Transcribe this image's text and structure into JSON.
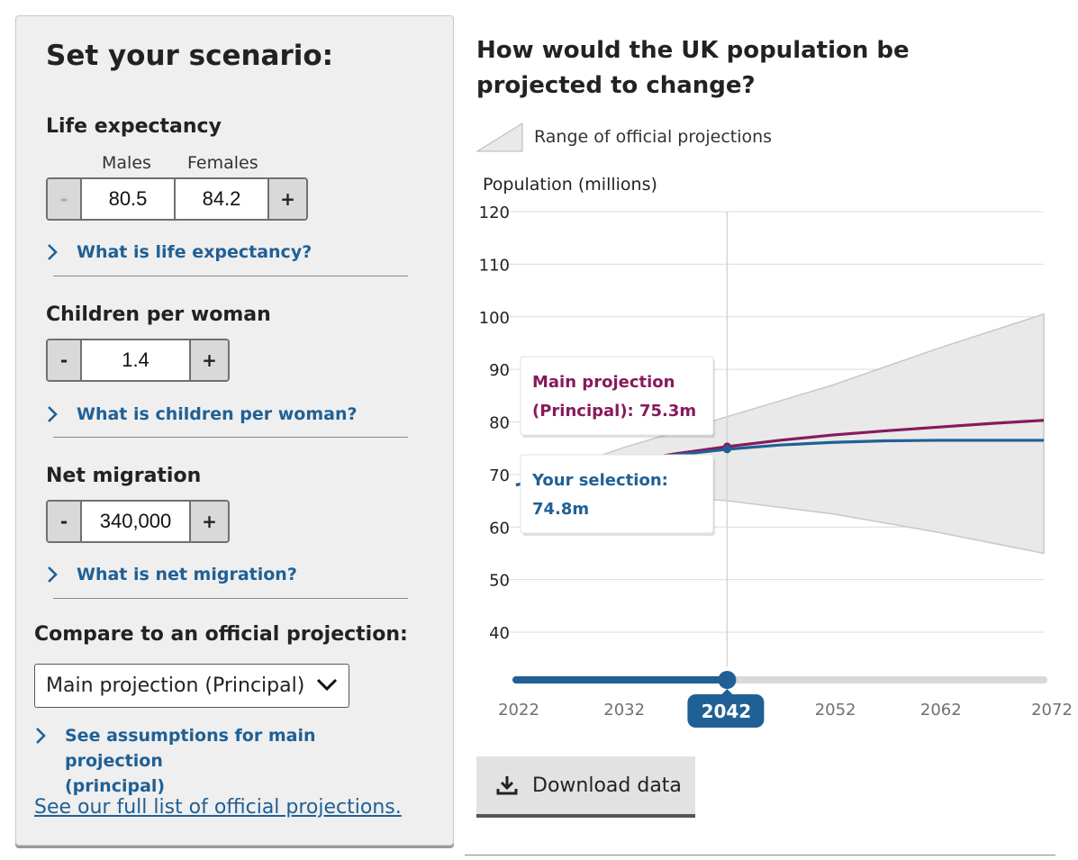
{
  "panel": {
    "title": "Set your scenario:",
    "life_expectancy": {
      "label": "Life expectancy",
      "males_label": "Males",
      "females_label": "Females",
      "minus": "-",
      "plus": "+",
      "males_value": "80.5",
      "females_value": "84.2",
      "info_link": "What is life expectancy?"
    },
    "children": {
      "label": "Children per woman",
      "minus": "-",
      "plus": "+",
      "value": "1.4",
      "info_link": "What is children per woman?"
    },
    "migration": {
      "label": "Net migration",
      "minus": "-",
      "plus": "+",
      "value": "340,000",
      "info_link": "What is net migration?"
    },
    "compare": {
      "label": "Compare to an official projection:",
      "selected": "Main projection (Principal)",
      "assumptions_link_line1": "See assumptions for main projection",
      "assumptions_link_line2": "(principal)"
    },
    "full_list_link": "See our full list of official projections."
  },
  "chart_title": "How would the UK population be projected to change?",
  "legend_label": "Range of official projections",
  "download_label": "Download data",
  "colors": {
    "principal": "#871a5b",
    "selection": "#206095",
    "range_fill": "#e9e9e9",
    "range_stroke": "#c8c8c8",
    "slider": "#206095"
  },
  "chart_data": {
    "type": "line",
    "ylabel": "Population (millions)",
    "ylim": [
      40,
      120
    ],
    "yticks": [
      40,
      50,
      60,
      70,
      80,
      90,
      100,
      110,
      120
    ],
    "xlim": [
      2022,
      2072
    ],
    "xticks": [
      "2022",
      "2032",
      "2042",
      "2052",
      "2062",
      "2072"
    ],
    "selected_year": "2042",
    "range": {
      "x": [
        2022,
        2032,
        2042,
        2052,
        2062,
        2072
      ],
      "upper": [
        68,
        75,
        81,
        87,
        94,
        100.5
      ],
      "lower": [
        68,
        66.5,
        65,
        62.5,
        59,
        55
      ]
    },
    "series": [
      {
        "name": "Main projection",
        "x": [
          2022,
          2027,
          2032,
          2037,
          2042,
          2047,
          2052,
          2057,
          2062,
          2067,
          2072
        ],
        "values": [
          68,
          70.2,
          72.3,
          73.9,
          75.3,
          76.5,
          77.5,
          78.3,
          79.0,
          79.7,
          80.3
        ]
      },
      {
        "name": "Your selection",
        "x": [
          2022,
          2027,
          2032,
          2037,
          2042,
          2047,
          2052,
          2057,
          2062,
          2067,
          2072
        ],
        "values": [
          68,
          70.3,
          72.2,
          73.7,
          74.8,
          75.6,
          76.1,
          76.4,
          76.5,
          76.5,
          76.5
        ]
      }
    ],
    "tooltips": [
      {
        "line1": "Main projection",
        "line2": "(Principal): 75.3m"
      },
      {
        "line1": "Your selection:",
        "line2": "74.8m"
      }
    ]
  }
}
